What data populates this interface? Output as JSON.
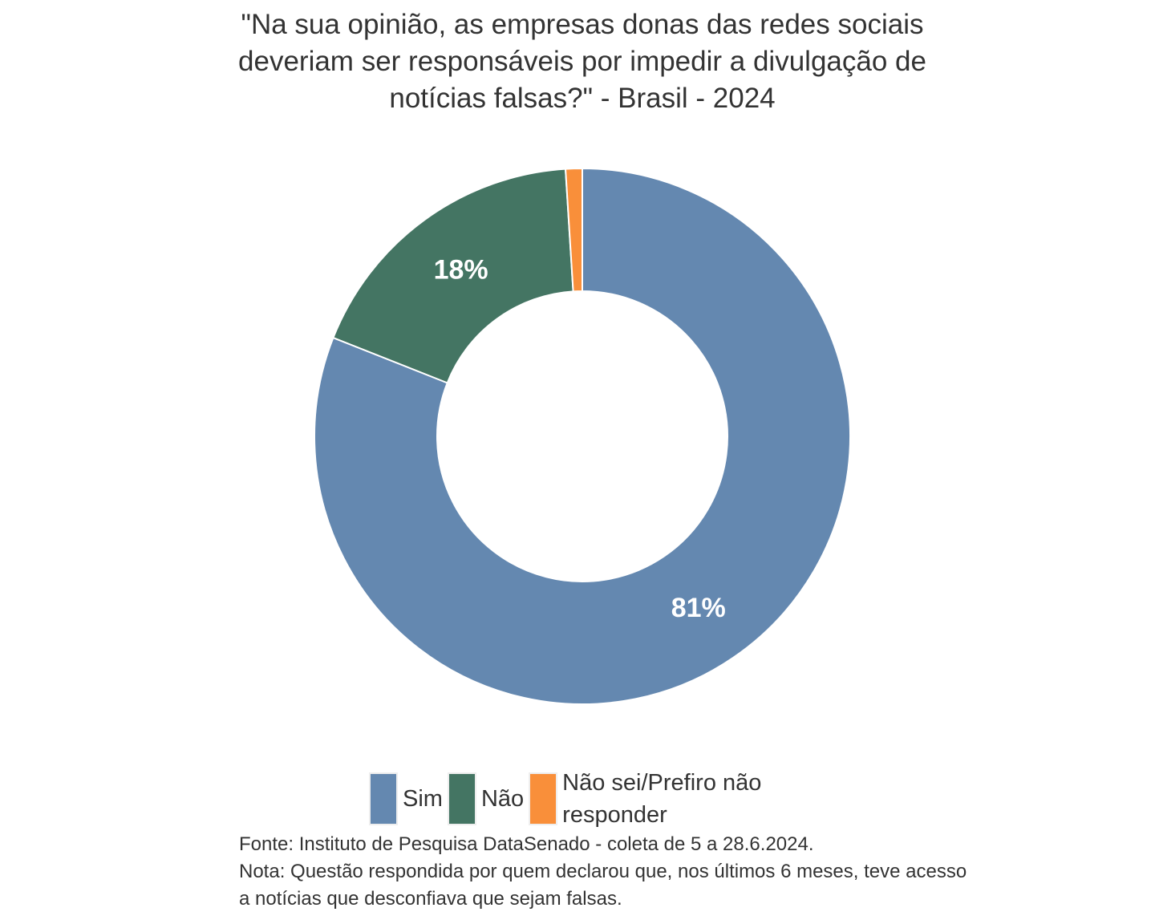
{
  "chart_data": {
    "type": "pie",
    "donut": true,
    "title": "\"Na sua opinião, as empresas donas das redes sociais deveriam ser responsáveis por impedir a divulgação de notícias falsas?\" - Brasil - 2024",
    "title_lines": [
      "\"Na sua opinião, as empresas donas das redes sociais",
      "deveriam ser responsáveis por impedir a divulgação de",
      "notícias falsas?\" - Brasil - 2024"
    ],
    "categories": [
      "Sim",
      "Não",
      "Não sei/Prefiro não responder"
    ],
    "values": [
      81,
      18,
      1
    ],
    "data_labels": [
      "81%",
      "18%",
      ""
    ],
    "colors": [
      "#6488B0",
      "#447563",
      "#F98F3A"
    ],
    "legend_position": "bottom",
    "legend_lines": [
      "Não sei/Prefiro não",
      "responder"
    ]
  },
  "source": [
    "Fonte: Instituto de Pesquisa DataSenado - coleta de 5 a 28.6.2024.",
    "Nota: Questão respondida por quem declarou que, nos últimos 6 meses, teve acesso",
    "a notícias que desconfiava que sejam falsas."
  ]
}
